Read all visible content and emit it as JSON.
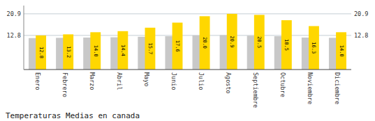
{
  "chart_data": {
    "type": "bar",
    "title": "Temperaturas Medias en canada",
    "categories": [
      "Enero",
      "Febrero",
      "Marzo",
      "Abril",
      "Mayo",
      "Junio",
      "Julio",
      "Agosto",
      "Septiembre",
      "Octubre",
      "Noviembre",
      "Diciembre"
    ],
    "series": [
      {
        "color": "#C8C8C8",
        "values": [
          11.8,
          11.9,
          12.0,
          12.1,
          12.3,
          12.5,
          12.8,
          12.9,
          12.7,
          12.5,
          12.0,
          11.9
        ]
      },
      {
        "color": "#FFD700",
        "values": [
          12.8,
          13.2,
          14.0,
          14.4,
          15.7,
          17.6,
          20.0,
          20.9,
          20.5,
          18.5,
          16.3,
          14.0
        ],
        "data_labels": true,
        "value_labels": [
          "12.8",
          "13.2",
          "14.0",
          "14.4",
          "15.7",
          "17.6",
          "20.0",
          "20.9",
          "20.5",
          "18.5",
          "16.3",
          "14.0"
        ]
      }
    ],
    "ylim": [
      0,
      24.0
    ],
    "yticks": [
      12.8,
      20.9
    ],
    "grid": true
  }
}
